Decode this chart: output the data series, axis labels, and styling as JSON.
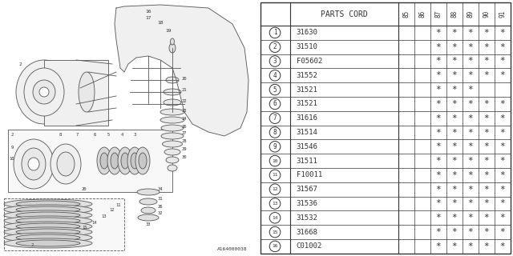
{
  "title": "PARTS CORD",
  "columns": [
    "85",
    "86",
    "87",
    "88",
    "89",
    "90",
    "91"
  ],
  "rows": [
    {
      "num": 1,
      "code": "31630",
      "stars": [
        0,
        0,
        1,
        1,
        1,
        1,
        1
      ]
    },
    {
      "num": 2,
      "code": "31510",
      "stars": [
        0,
        0,
        1,
        1,
        1,
        1,
        1
      ]
    },
    {
      "num": 3,
      "code": "F05602",
      "stars": [
        0,
        0,
        1,
        1,
        1,
        1,
        1
      ]
    },
    {
      "num": 4,
      "code": "31552",
      "stars": [
        0,
        0,
        1,
        1,
        1,
        1,
        1
      ]
    },
    {
      "num": 5,
      "code": "31521",
      "stars": [
        0,
        0,
        1,
        1,
        1,
        0,
        0
      ]
    },
    {
      "num": 6,
      "code": "31521",
      "stars": [
        0,
        0,
        1,
        1,
        1,
        1,
        1
      ]
    },
    {
      "num": 7,
      "code": "31616",
      "stars": [
        0,
        0,
        1,
        1,
        1,
        1,
        1
      ]
    },
    {
      "num": 8,
      "code": "31514",
      "stars": [
        0,
        0,
        1,
        1,
        1,
        1,
        1
      ]
    },
    {
      "num": 9,
      "code": "31546",
      "stars": [
        0,
        0,
        1,
        1,
        1,
        1,
        1
      ]
    },
    {
      "num": 10,
      "code": "31511",
      "stars": [
        0,
        0,
        1,
        1,
        1,
        1,
        1
      ]
    },
    {
      "num": 11,
      "code": "F10011",
      "stars": [
        0,
        0,
        1,
        1,
        1,
        1,
        1
      ]
    },
    {
      "num": 12,
      "code": "31567",
      "stars": [
        0,
        0,
        1,
        1,
        1,
        1,
        1
      ]
    },
    {
      "num": 13,
      "code": "31536",
      "stars": [
        0,
        0,
        1,
        1,
        1,
        1,
        1
      ]
    },
    {
      "num": 14,
      "code": "31532",
      "stars": [
        0,
        0,
        1,
        1,
        1,
        1,
        1
      ]
    },
    {
      "num": 15,
      "code": "31668",
      "stars": [
        0,
        0,
        1,
        1,
        1,
        1,
        1
      ]
    },
    {
      "num": 16,
      "code": "C01002",
      "stars": [
        0,
        0,
        1,
        1,
        1,
        1,
        1
      ]
    }
  ],
  "bg_color": "#ffffff",
  "line_color": "#555555",
  "text_color": "#333333",
  "watermark": "A164000038",
  "table_bg": "#ffffff",
  "diag_bg": "#ffffff"
}
